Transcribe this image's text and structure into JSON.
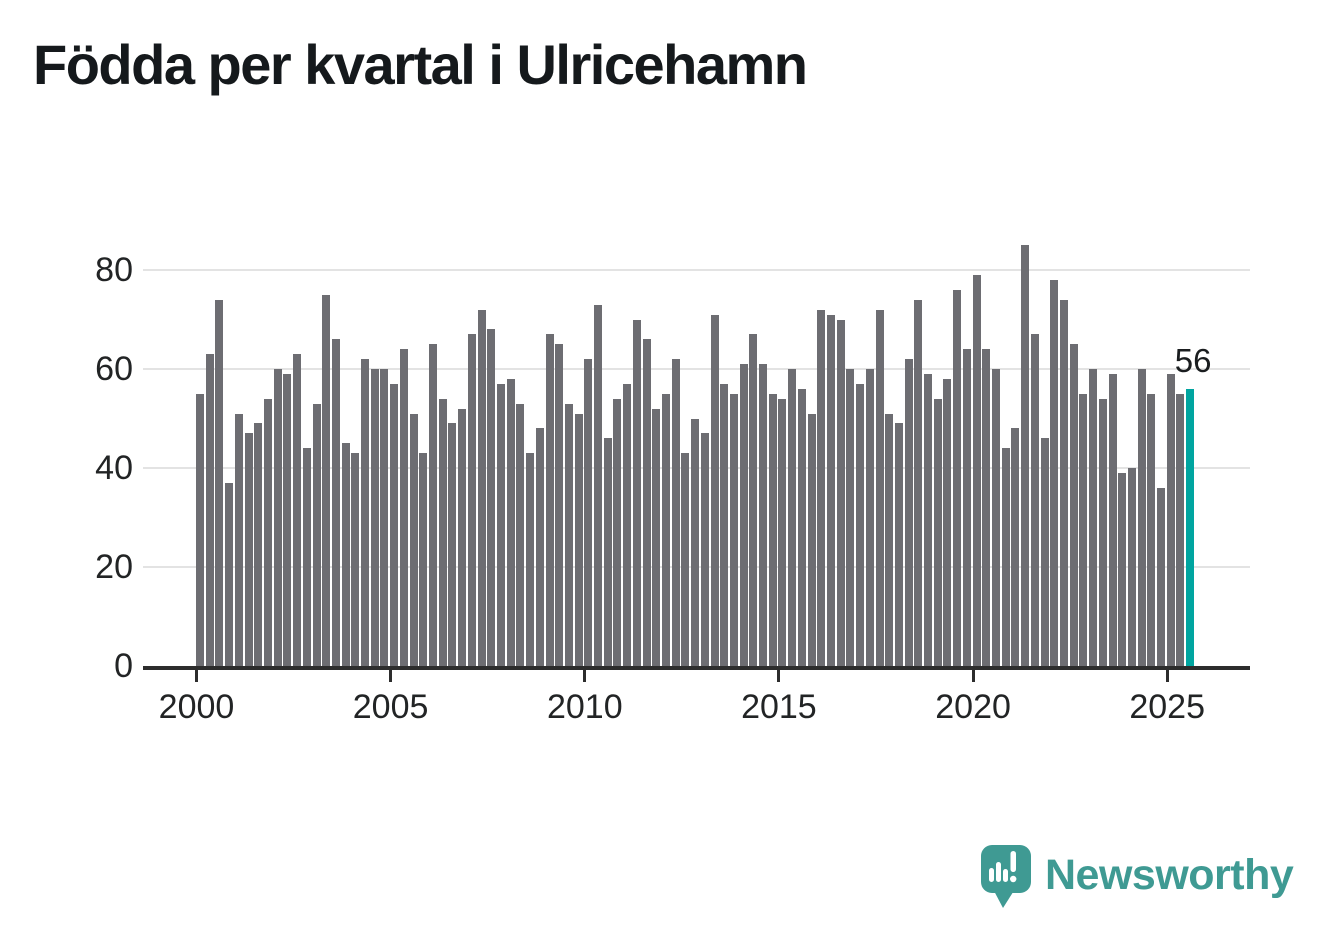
{
  "page": {
    "title": "Födda per kvartal i Ulricehamn",
    "background": "#ffffff"
  },
  "colors": {
    "bar": "#6d6d72",
    "highlight": "#00a5a0",
    "gridline": "#e3e3e3",
    "axis": "#2d2d2d",
    "axis_text": "#222425",
    "title_text": "#15191c",
    "annotation_text": "#1a1d1f",
    "logo_teal": "#3f9a93"
  },
  "chart_data": {
    "type": "bar",
    "title": "Födda per kvartal i Ulricehamn",
    "xlabel": "",
    "ylabel": "",
    "ylim": [
      0,
      85
    ],
    "grid": "horizontal",
    "legend": "none",
    "y_ticks": [
      0,
      20,
      40,
      60,
      80
    ],
    "x_ticks": [
      2000,
      2005,
      2010,
      2015,
      2020,
      2025
    ],
    "categories": [
      "2000 Q1",
      "2000 Q2",
      "2000 Q3",
      "2000 Q4",
      "2001 Q1",
      "2001 Q2",
      "2001 Q3",
      "2001 Q4",
      "2002 Q1",
      "2002 Q2",
      "2002 Q3",
      "2002 Q4",
      "2003 Q1",
      "2003 Q2",
      "2003 Q3",
      "2003 Q4",
      "2004 Q1",
      "2004 Q2",
      "2004 Q3",
      "2004 Q4",
      "2005 Q1",
      "2005 Q2",
      "2005 Q3",
      "2005 Q4",
      "2006 Q1",
      "2006 Q2",
      "2006 Q3",
      "2006 Q4",
      "2007 Q1",
      "2007 Q2",
      "2007 Q3",
      "2007 Q4",
      "2008 Q1",
      "2008 Q2",
      "2008 Q3",
      "2008 Q4",
      "2009 Q1",
      "2009 Q2",
      "2009 Q3",
      "2009 Q4",
      "2010 Q1",
      "2010 Q2",
      "2010 Q3",
      "2010 Q4",
      "2011 Q1",
      "2011 Q2",
      "2011 Q3",
      "2011 Q4",
      "2012 Q1",
      "2012 Q2",
      "2012 Q3",
      "2012 Q4",
      "2013 Q1",
      "2013 Q2",
      "2013 Q3",
      "2013 Q4",
      "2014 Q1",
      "2014 Q2",
      "2014 Q3",
      "2014 Q4",
      "2015 Q1",
      "2015 Q2",
      "2015 Q3",
      "2015 Q4",
      "2016 Q1",
      "2016 Q2",
      "2016 Q3",
      "2016 Q4",
      "2017 Q1",
      "2017 Q2",
      "2017 Q3",
      "2017 Q4",
      "2018 Q1",
      "2018 Q2",
      "2018 Q3",
      "2018 Q4",
      "2019 Q1",
      "2019 Q2",
      "2019 Q3",
      "2019 Q4",
      "2020 Q1",
      "2020 Q2",
      "2020 Q3",
      "2020 Q4",
      "2021 Q1",
      "2021 Q2",
      "2021 Q3",
      "2021 Q4",
      "2022 Q1",
      "2022 Q2",
      "2022 Q3",
      "2022 Q4",
      "2023 Q1",
      "2023 Q2",
      "2023 Q3",
      "2023 Q4",
      "2024 Q1",
      "2024 Q2",
      "2024 Q3",
      "2024 Q4",
      "2025 Q1",
      "2025 Q2",
      "2025 Q3"
    ],
    "values": [
      55,
      63,
      74,
      37,
      51,
      47,
      49,
      54,
      60,
      59,
      63,
      44,
      53,
      75,
      66,
      45,
      43,
      62,
      60,
      60,
      57,
      64,
      51,
      43,
      65,
      54,
      49,
      52,
      67,
      72,
      68,
      57,
      58,
      53,
      43,
      48,
      67,
      65,
      53,
      51,
      62,
      73,
      46,
      54,
      57,
      70,
      66,
      52,
      55,
      62,
      43,
      50,
      47,
      71,
      57,
      55,
      61,
      67,
      61,
      55,
      54,
      60,
      56,
      51,
      72,
      71,
      70,
      60,
      57,
      60,
      72,
      51,
      49,
      62,
      74,
      59,
      54,
      58,
      76,
      64,
      79,
      64,
      60,
      44,
      48,
      85,
      67,
      46,
      78,
      74,
      65,
      55,
      60,
      54,
      59,
      39,
      40,
      60,
      55,
      36,
      59,
      55,
      56
    ],
    "highlight": {
      "index": 102,
      "category": "2025 Q3",
      "value": 56,
      "label": "56"
    }
  },
  "logo": {
    "text": "Newsworthy",
    "icon": "newsworthy-speech-bubble-chart-icon"
  }
}
